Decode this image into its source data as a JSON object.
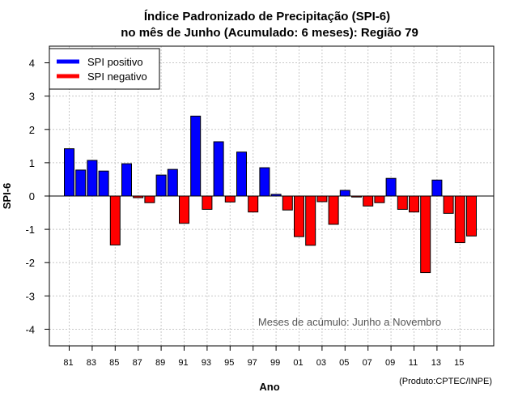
{
  "chart_data": {
    "type": "bar",
    "title": "Índice Padronizado de Precipitação (SPI-6)",
    "subtitle": "no mês de Junho (Acumulado: 6 meses): Região 79",
    "xlabel": "Ano",
    "ylabel": "SPI-6",
    "ylim": [
      -4.5,
      4.5
    ],
    "yticks": [
      -4,
      -3,
      -2,
      -1,
      0,
      1,
      2,
      3,
      4
    ],
    "grid": true,
    "legend_position": "top-left",
    "legend": [
      {
        "label": "SPI positivo",
        "color": "#0000ff"
      },
      {
        "label": "SPI negativo",
        "color": "#ff0000"
      }
    ],
    "colors": {
      "positive": "#0000ff",
      "negative": "#ff0000"
    },
    "annotation": "Meses de acúmulo: Junho a Novembro",
    "credit": "(Produto:CPTEC/INPE)",
    "x_tick_labels": [
      "81",
      "83",
      "85",
      "87",
      "89",
      "91",
      "93",
      "95",
      "97",
      "99",
      "01",
      "03",
      "05",
      "07",
      "09",
      "11",
      "13",
      "15"
    ],
    "years": [
      1981,
      1982,
      1983,
      1984,
      1985,
      1986,
      1987,
      1988,
      1989,
      1990,
      1991,
      1992,
      1993,
      1994,
      1995,
      1996,
      1997,
      1998,
      1999,
      2000,
      2001,
      2002,
      2003,
      2004,
      2005,
      2006,
      2007,
      2008,
      2009,
      2010,
      2011,
      2012,
      2013,
      2014,
      2015,
      2016
    ],
    "values": [
      1.42,
      0.78,
      1.07,
      0.75,
      -1.47,
      0.97,
      -0.05,
      -0.2,
      0.63,
      0.8,
      -0.82,
      2.4,
      -0.4,
      1.63,
      -0.18,
      1.32,
      -0.48,
      0.85,
      0.05,
      -0.42,
      -1.22,
      -1.48,
      -0.17,
      -0.85,
      0.17,
      -0.03,
      -0.3,
      -0.2,
      0.53,
      -0.4,
      -0.48,
      -2.3,
      0.48,
      -0.52,
      -1.4,
      -1.2
    ]
  }
}
